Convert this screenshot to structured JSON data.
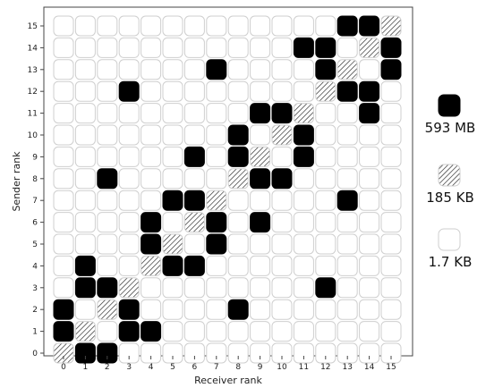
{
  "chart_data": {
    "type": "heatmap",
    "xlabel": "Receiver rank",
    "ylabel": "Sender rank",
    "x_ticks": [
      "0",
      "1",
      "2",
      "3",
      "4",
      "5",
      "6",
      "7",
      "8",
      "9",
      "10",
      "11",
      "12",
      "13",
      "14",
      "15"
    ],
    "y_ticks": [
      "0",
      "1",
      "2",
      "3",
      "4",
      "5",
      "6",
      "7",
      "8",
      "9",
      "10",
      "11",
      "12",
      "13",
      "14",
      "15"
    ],
    "levels": [
      {
        "key": "low",
        "label": "1.7 KB",
        "fill": "#ffffff",
        "pattern": "none"
      },
      {
        "key": "mid",
        "label": "185 KB",
        "fill": "#ffffff",
        "pattern": "hatch"
      },
      {
        "key": "high",
        "label": "593 MB",
        "fill": "#000000",
        "pattern": "none"
      }
    ],
    "legend_order": [
      "high",
      "mid",
      "low"
    ],
    "legend_position": "right",
    "grid": false,
    "cells": {
      "high": [
        [
          0,
          1
        ],
        [
          0,
          2
        ],
        [
          1,
          0
        ],
        [
          1,
          3
        ],
        [
          1,
          4
        ],
        [
          2,
          0
        ],
        [
          2,
          3
        ],
        [
          2,
          8
        ],
        [
          3,
          1
        ],
        [
          3,
          2
        ],
        [
          3,
          12
        ],
        [
          4,
          1
        ],
        [
          4,
          5
        ],
        [
          4,
          6
        ],
        [
          5,
          4
        ],
        [
          5,
          7
        ],
        [
          6,
          4
        ],
        [
          6,
          7
        ],
        [
          6,
          9
        ],
        [
          7,
          5
        ],
        [
          7,
          6
        ],
        [
          7,
          13
        ],
        [
          8,
          2
        ],
        [
          8,
          9
        ],
        [
          8,
          10
        ],
        [
          9,
          6
        ],
        [
          9,
          8
        ],
        [
          9,
          11
        ],
        [
          10,
          8
        ],
        [
          10,
          11
        ],
        [
          11,
          9
        ],
        [
          11,
          10
        ],
        [
          11,
          14
        ],
        [
          12,
          3
        ],
        [
          12,
          13
        ],
        [
          12,
          14
        ],
        [
          13,
          7
        ],
        [
          13,
          12
        ],
        [
          13,
          15
        ],
        [
          14,
          11
        ],
        [
          14,
          12
        ],
        [
          14,
          15
        ],
        [
          15,
          13
        ],
        [
          15,
          14
        ]
      ],
      "mid": [
        [
          0,
          0
        ],
        [
          1,
          1
        ],
        [
          2,
          2
        ],
        [
          3,
          3
        ],
        [
          4,
          4
        ],
        [
          5,
          5
        ],
        [
          6,
          6
        ],
        [
          7,
          7
        ],
        [
          8,
          8
        ],
        [
          9,
          9
        ],
        [
          10,
          10
        ],
        [
          11,
          11
        ],
        [
          12,
          12
        ],
        [
          13,
          13
        ],
        [
          14,
          14
        ],
        [
          15,
          15
        ]
      ]
    }
  }
}
